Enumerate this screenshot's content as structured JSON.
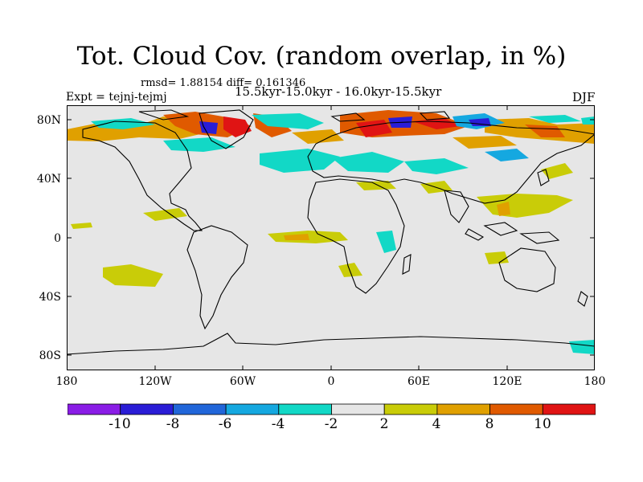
{
  "title": "Tot. Cloud Cov. (random overlap, in %)",
  "stats_line": "rmsd= 1.88154 diff= 0.161346",
  "experiment_label": "Expt = tejnj-tejmj",
  "period_label": "15.5kyr-15.0kyr - 16.0kyr-15.5kyr",
  "season_label": "DJF",
  "lat_ticks": [
    "80N",
    "40N",
    "0",
    "40S",
    "80S"
  ],
  "lon_ticks": [
    "180",
    "120W",
    "60W",
    "0",
    "60E",
    "120E",
    "180"
  ],
  "colorbar": {
    "labels": [
      "-10",
      "-8",
      "-6",
      "-4",
      "-2",
      "2",
      "4",
      "8",
      "10"
    ],
    "colors": [
      "#8a1de6",
      "#2a1dd6",
      "#2166d9",
      "#15a8e0",
      "#12d8c6",
      "#e6e6e6",
      "#c9cc08",
      "#e0a000",
      "#e05a00",
      "#e01414"
    ]
  },
  "map": {
    "background_color": "#e6e6e6",
    "coastline_color": "#000000"
  }
}
